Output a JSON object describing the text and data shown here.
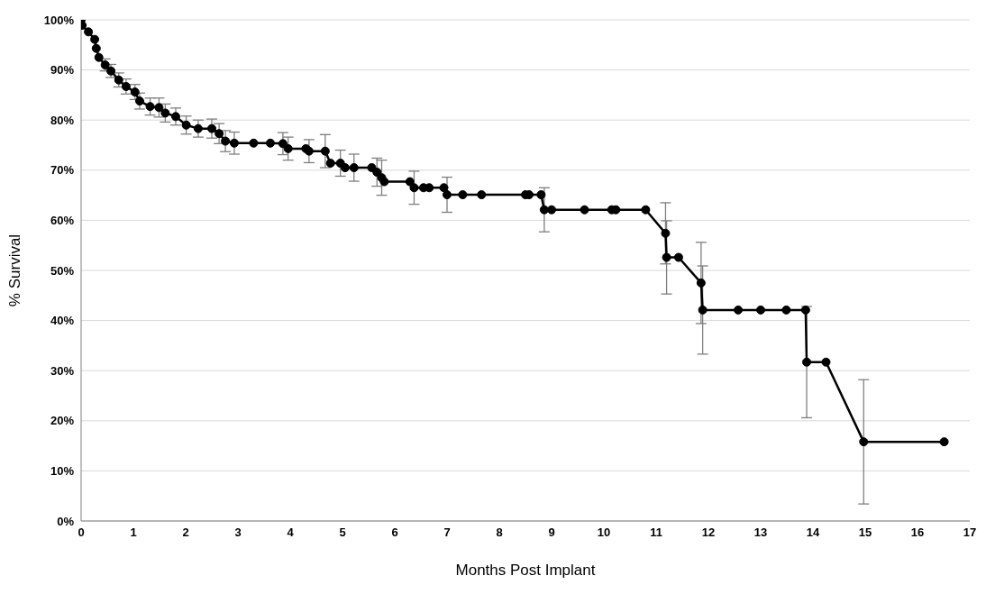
{
  "chart_data": {
    "type": "line",
    "xlabel": "Months Post Implant",
    "ylabel": "% Survival",
    "x": [
      0,
      0.02,
      0.14,
      0.26,
      0.29,
      0.34,
      0.46,
      0.57,
      0.72,
      0.86,
      1.03,
      1.12,
      1.32,
      1.49,
      1.61,
      1.81,
      2.01,
      2.24,
      2.5,
      2.64,
      2.76,
      2.93,
      3.3,
      3.62,
      3.86,
      3.96,
      4.3,
      4.36,
      4.67,
      4.77,
      4.96,
      5.05,
      5.22,
      5.56,
      5.66,
      5.75,
      5.8,
      6.29,
      6.37,
      6.55,
      6.66,
      6.94,
      7.0,
      7.3,
      7.66,
      8.5,
      8.57,
      8.8,
      8.86,
      9.0,
      9.63,
      10.15,
      10.23,
      10.8,
      11.18,
      11.2,
      11.43,
      11.86,
      11.89,
      12.57,
      13.0,
      13.49,
      13.86,
      13.88,
      14.25,
      14.97,
      16.51
    ],
    "series": [
      {
        "color": "#000000",
        "values": [
          100,
          98.9,
          97.6,
          96.1,
          94.3,
          92.5,
          91.0,
          89.8,
          88.0,
          86.7,
          85.6,
          83.8,
          82.7,
          82.5,
          81.4,
          80.7,
          79.0,
          78.3,
          78.3,
          77.3,
          75.8,
          75.4,
          75.4,
          75.4,
          75.3,
          74.3,
          74.3,
          73.8,
          73.8,
          71.4,
          71.4,
          70.5,
          70.5,
          70.5,
          69.6,
          68.5,
          67.7,
          67.7,
          66.5,
          66.5,
          66.5,
          66.5,
          65.1,
          65.1,
          65.1,
          65.1,
          65.1,
          65.1,
          62.1,
          62.1,
          62.1,
          62.1,
          62.1,
          62.1,
          57.4,
          52.6,
          52.6,
          47.5,
          42.1,
          42.1,
          42.1,
          42.1,
          42.1,
          31.7,
          31.7,
          15.8,
          15.8
        ],
        "errors": [
          null,
          null,
          null,
          null,
          null,
          null,
          1.2,
          1.3,
          1.4,
          1.5,
          1.5,
          1.6,
          1.7,
          1.9,
          1.8,
          1.7,
          1.8,
          1.7,
          1.9,
          2.0,
          2.1,
          2.2,
          null,
          null,
          2.2,
          2.3,
          null,
          2.3,
          3.3,
          null,
          2.6,
          null,
          2.7,
          null,
          2.8,
          3.5,
          null,
          null,
          3.3,
          null,
          null,
          null,
          3.5,
          null,
          null,
          null,
          null,
          null,
          4.4,
          null,
          null,
          null,
          null,
          null,
          6.1,
          7.3,
          null,
          8.1,
          8.8,
          null,
          null,
          null,
          null,
          11.1,
          null,
          12.4,
          null
        ]
      }
    ],
    "xlim": [
      0,
      17
    ],
    "xticks": [
      0,
      1,
      2,
      3,
      4,
      5,
      6,
      7,
      8,
      9,
      10,
      11,
      12,
      13,
      14,
      15,
      16,
      17
    ],
    "ylim": [
      0,
      100
    ],
    "yticks": [
      {
        "value": 0,
        "label": "0%"
      },
      {
        "value": 10,
        "label": "10%"
      },
      {
        "value": 20,
        "label": "20%"
      },
      {
        "value": 30,
        "label": "30%"
      },
      {
        "value": 40,
        "label": "40%"
      },
      {
        "value": 50,
        "label": "50%"
      },
      {
        "value": 60,
        "label": "60%"
      },
      {
        "value": 70,
        "label": "70%"
      },
      {
        "value": 80,
        "label": "80%"
      },
      {
        "value": 90,
        "label": "90%"
      },
      {
        "value": 100,
        "label": "100%"
      }
    ],
    "grid": "y",
    "marker": "circle",
    "line_style": "solid",
    "legend": false
  }
}
